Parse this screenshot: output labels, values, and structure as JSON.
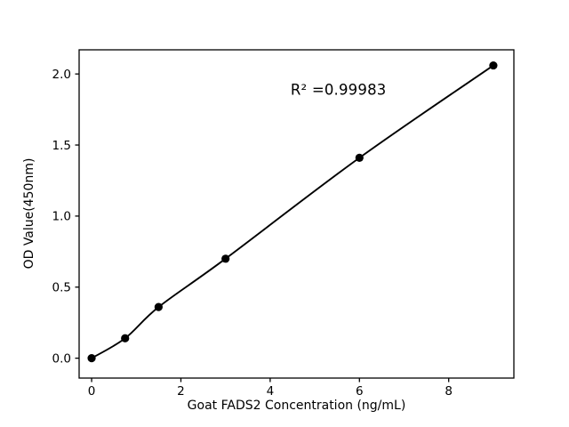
{
  "figure": {
    "background": "#ffffff",
    "frame_color": "#000000",
    "text_color": "#000000"
  },
  "chart_data": {
    "type": "line",
    "title": "",
    "xlabel": "Goat FADS2 Concentration (ng/mL)",
    "ylabel": "OD Value(450nm)",
    "series": [
      {
        "name": "standard-curve",
        "x": [
          0,
          0.75,
          1.5,
          3,
          6,
          9
        ],
        "y": [
          0.0,
          0.14,
          0.36,
          0.7,
          1.41,
          2.06
        ],
        "color": "#000000",
        "marker": "circle",
        "marker_color": "#000000",
        "smooth": true
      }
    ],
    "annotation": {
      "text": "R² =0.99983",
      "x": 5.53,
      "y": 1.89
    },
    "x_ticks": [
      0,
      2,
      4,
      6,
      8
    ],
    "x_tick_labels": [
      "0",
      "2",
      "4",
      "6",
      "8"
    ],
    "y_ticks": [
      0.0,
      0.5,
      1.0,
      1.5,
      2.0
    ],
    "y_tick_labels": [
      "0.0",
      "0.5",
      "1.0",
      "1.5",
      "2.0"
    ],
    "xlim": [
      -0.28,
      9.46
    ],
    "ylim": [
      -0.14,
      2.17
    ],
    "grid": false,
    "legend": null
  }
}
